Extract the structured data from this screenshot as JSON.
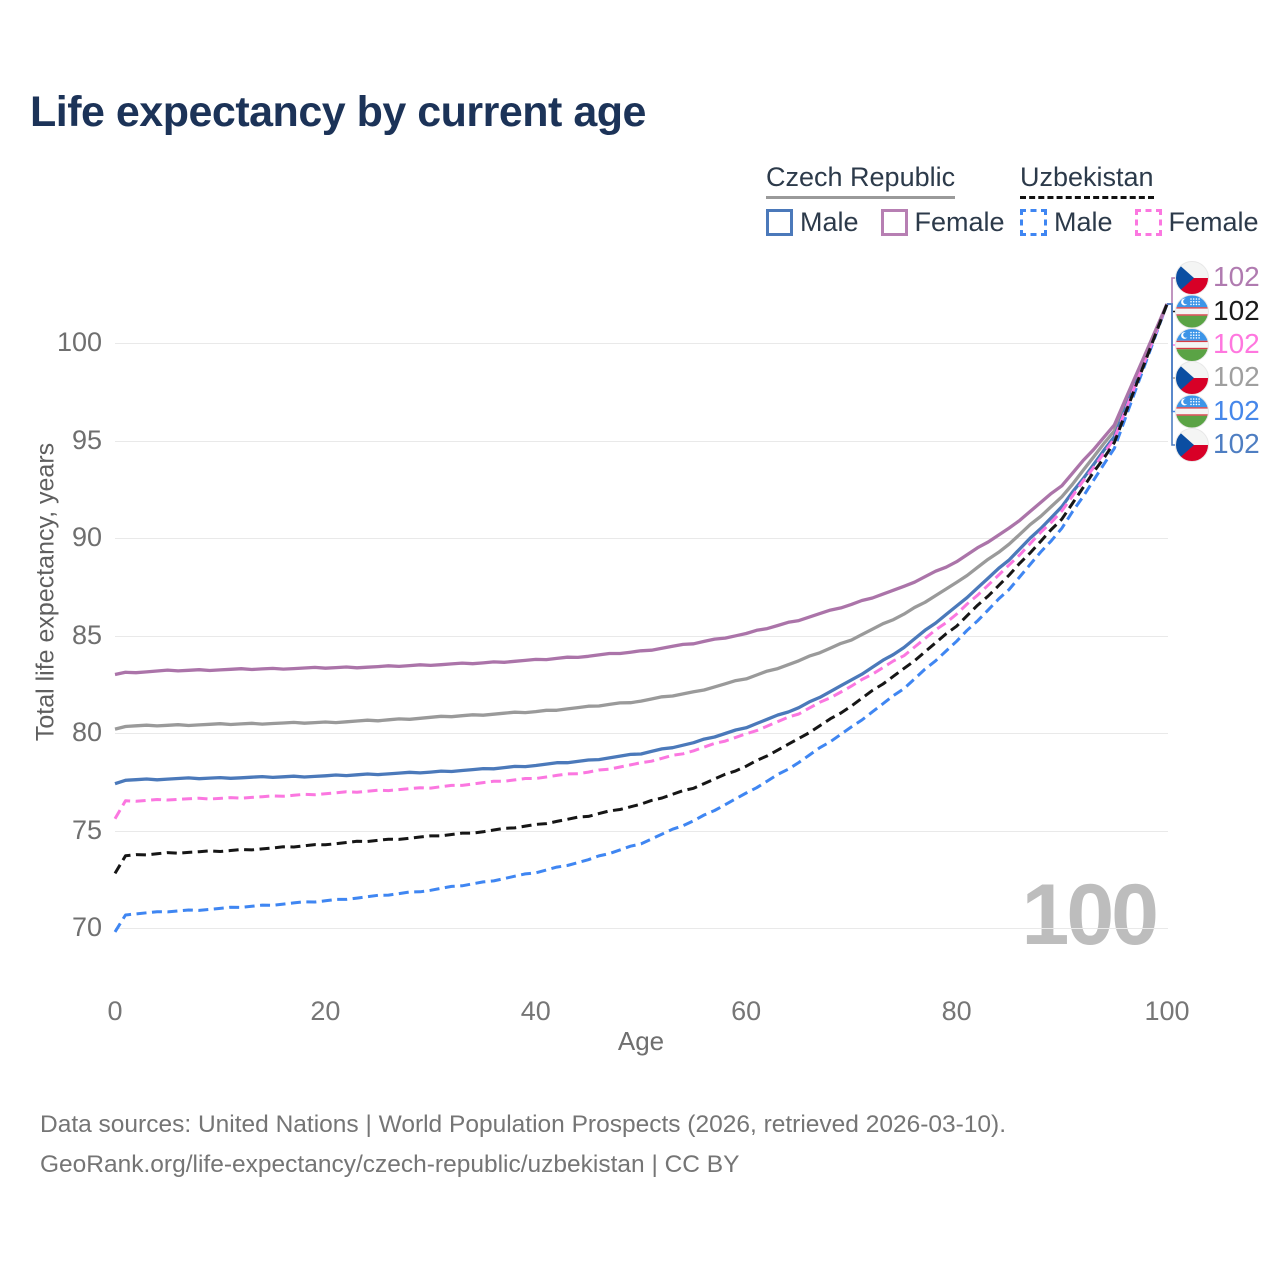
{
  "title": "Life expectancy by current age",
  "legend": {
    "groups": [
      {
        "name": "Czech Republic",
        "underline": "solid",
        "items": [
          {
            "label": "Male",
            "color": "#4b79ba",
            "dashed": false
          },
          {
            "label": "Female",
            "color": "#b77fb3",
            "dashed": false
          }
        ]
      },
      {
        "name": "Uzbekistan",
        "underline": "dashed",
        "items": [
          {
            "label": "Male",
            "color": "#3f86f2",
            "dashed": true
          },
          {
            "label": "Female",
            "color": "#fb77e0",
            "dashed": true
          }
        ]
      }
    ]
  },
  "chart_data": {
    "type": "line",
    "title": "Life expectancy by current age",
    "xlabel": "Age",
    "ylabel": "Total life expectancy, years",
    "xlim": [
      0,
      100
    ],
    "ylim": [
      69,
      103
    ],
    "xticks": [
      0,
      20,
      40,
      60,
      80,
      100
    ],
    "yticks": [
      70,
      75,
      80,
      85,
      90,
      95,
      100
    ],
    "grid": "horizontal-only",
    "legend_position": "top-right",
    "series": [
      {
        "id": "czech-republic-both",
        "name": "Czech Republic (both sexes)",
        "color": "#9a9a9a",
        "dashed": false,
        "points": [
          [
            0,
            80.2
          ],
          [
            1,
            80.35
          ],
          [
            5,
            80.4
          ],
          [
            10,
            80.45
          ],
          [
            15,
            80.5
          ],
          [
            20,
            80.55
          ],
          [
            25,
            80.65
          ],
          [
            30,
            80.8
          ],
          [
            35,
            80.95
          ],
          [
            40,
            81.1
          ],
          [
            45,
            81.35
          ],
          [
            50,
            81.65
          ],
          [
            55,
            82.1
          ],
          [
            60,
            82.8
          ],
          [
            65,
            83.7
          ],
          [
            70,
            84.8
          ],
          [
            75,
            86.1
          ],
          [
            80,
            87.7
          ],
          [
            85,
            89.7
          ],
          [
            90,
            92.1
          ],
          [
            95,
            95.5
          ],
          [
            100,
            102
          ]
        ]
      },
      {
        "id": "czech-republic-male",
        "name": "Czech Republic Male",
        "color": "#4b79ba",
        "dashed": false,
        "points": [
          [
            0,
            77.4
          ],
          [
            1,
            77.6
          ],
          [
            5,
            77.65
          ],
          [
            10,
            77.7
          ],
          [
            15,
            77.75
          ],
          [
            20,
            77.8
          ],
          [
            25,
            77.9
          ],
          [
            30,
            78.0
          ],
          [
            35,
            78.15
          ],
          [
            40,
            78.35
          ],
          [
            45,
            78.6
          ],
          [
            50,
            78.95
          ],
          [
            55,
            79.5
          ],
          [
            60,
            80.3
          ],
          [
            65,
            81.3
          ],
          [
            70,
            82.7
          ],
          [
            75,
            84.4
          ],
          [
            80,
            86.5
          ],
          [
            85,
            88.9
          ],
          [
            90,
            91.6
          ],
          [
            95,
            95.2
          ],
          [
            100,
            102
          ]
        ]
      },
      {
        "id": "uzbekistan-male",
        "name": "Uzbekistan Male",
        "color": "#3f86f2",
        "dashed": true,
        "points": [
          [
            0,
            69.8
          ],
          [
            1,
            70.7
          ],
          [
            5,
            70.85
          ],
          [
            10,
            71.0
          ],
          [
            15,
            71.2
          ],
          [
            20,
            71.4
          ],
          [
            25,
            71.65
          ],
          [
            30,
            71.95
          ],
          [
            35,
            72.35
          ],
          [
            40,
            72.85
          ],
          [
            45,
            73.5
          ],
          [
            50,
            74.35
          ],
          [
            55,
            75.5
          ],
          [
            60,
            76.9
          ],
          [
            65,
            78.5
          ],
          [
            70,
            80.3
          ],
          [
            75,
            82.3
          ],
          [
            80,
            84.7
          ],
          [
            85,
            87.4
          ],
          [
            90,
            90.5
          ],
          [
            95,
            94.6
          ],
          [
            100,
            102
          ]
        ]
      },
      {
        "id": "uzbekistan-female",
        "name": "Uzbekistan Female",
        "color": "#fb77e0",
        "dashed": true,
        "points": [
          [
            0,
            75.6
          ],
          [
            1,
            76.5
          ],
          [
            5,
            76.6
          ],
          [
            10,
            76.65
          ],
          [
            15,
            76.75
          ],
          [
            20,
            76.9
          ],
          [
            25,
            77.05
          ],
          [
            30,
            77.2
          ],
          [
            35,
            77.45
          ],
          [
            40,
            77.7
          ],
          [
            45,
            78.0
          ],
          [
            50,
            78.45
          ],
          [
            55,
            79.1
          ],
          [
            60,
            79.95
          ],
          [
            65,
            81.0
          ],
          [
            70,
            82.4
          ],
          [
            75,
            84.0
          ],
          [
            80,
            86.1
          ],
          [
            85,
            88.6
          ],
          [
            90,
            91.4
          ],
          [
            95,
            95.1
          ],
          [
            100,
            102
          ]
        ]
      },
      {
        "id": "czech-republic-female",
        "name": "Czech Republic Female",
        "color": "#ab74a9",
        "dashed": false,
        "points": [
          [
            0,
            83.0
          ],
          [
            1,
            83.1
          ],
          [
            5,
            83.2
          ],
          [
            10,
            83.25
          ],
          [
            15,
            83.3
          ],
          [
            20,
            83.35
          ],
          [
            25,
            83.4
          ],
          [
            30,
            83.5
          ],
          [
            35,
            83.6
          ],
          [
            40,
            83.75
          ],
          [
            45,
            83.95
          ],
          [
            50,
            84.2
          ],
          [
            55,
            84.6
          ],
          [
            60,
            85.1
          ],
          [
            65,
            85.8
          ],
          [
            70,
            86.6
          ],
          [
            75,
            87.5
          ],
          [
            80,
            88.8
          ],
          [
            85,
            90.5
          ],
          [
            90,
            92.7
          ],
          [
            95,
            95.8
          ],
          [
            100,
            102
          ]
        ]
      },
      {
        "id": "uzbekistan-both",
        "name": "Uzbekistan (both sexes)",
        "color": "#161616",
        "dashed": true,
        "points": [
          [
            0,
            72.8
          ],
          [
            1,
            73.7
          ],
          [
            5,
            73.85
          ],
          [
            10,
            73.95
          ],
          [
            15,
            74.1
          ],
          [
            20,
            74.3
          ],
          [
            25,
            74.5
          ],
          [
            30,
            74.7
          ],
          [
            35,
            74.95
          ],
          [
            40,
            75.3
          ],
          [
            45,
            75.75
          ],
          [
            50,
            76.35
          ],
          [
            55,
            77.2
          ],
          [
            60,
            78.3
          ],
          [
            65,
            79.7
          ],
          [
            70,
            81.4
          ],
          [
            75,
            83.3
          ],
          [
            80,
            85.5
          ],
          [
            85,
            88.1
          ],
          [
            90,
            91.0
          ],
          [
            95,
            94.9
          ],
          [
            100,
            102
          ]
        ]
      }
    ],
    "end_labels": [
      {
        "series": "Czech Republic Female",
        "flag": "cz",
        "value": "102",
        "color": "#b07bb0"
      },
      {
        "series": "Uzbekistan (both sexes)",
        "flag": "uz",
        "value": "102",
        "color": "#1a1a1a"
      },
      {
        "series": "Uzbekistan Female",
        "flag": "uz",
        "value": "102",
        "color": "#ff77df"
      },
      {
        "series": "Czech Republic (both sexes)",
        "flag": "cz",
        "value": "102",
        "color": "#9f9f9f"
      },
      {
        "series": "Uzbekistan Male",
        "flag": "uz",
        "value": "102",
        "color": "#4687ea"
      },
      {
        "series": "Czech Republic Male",
        "flag": "cz",
        "value": "102",
        "color": "#4e7ec2"
      }
    ]
  },
  "watermark": "100",
  "footer": {
    "line1": "Data sources: United Nations | World Population Prospects (2026, retrieved 2026-03-10).",
    "line2": "GeoRank.org/life-expectancy/czech-republic/uzbekistan | CC BY"
  },
  "flag_colors": {
    "cz_white": "#f4f5f4",
    "cz_red": "#d80027",
    "cz_blue": "#0b4ea2",
    "uz_blue": "#3d95e8",
    "uz_white": "#f4f5f4",
    "uz_red": "#d63c44",
    "uz_green": "#5aa345"
  }
}
